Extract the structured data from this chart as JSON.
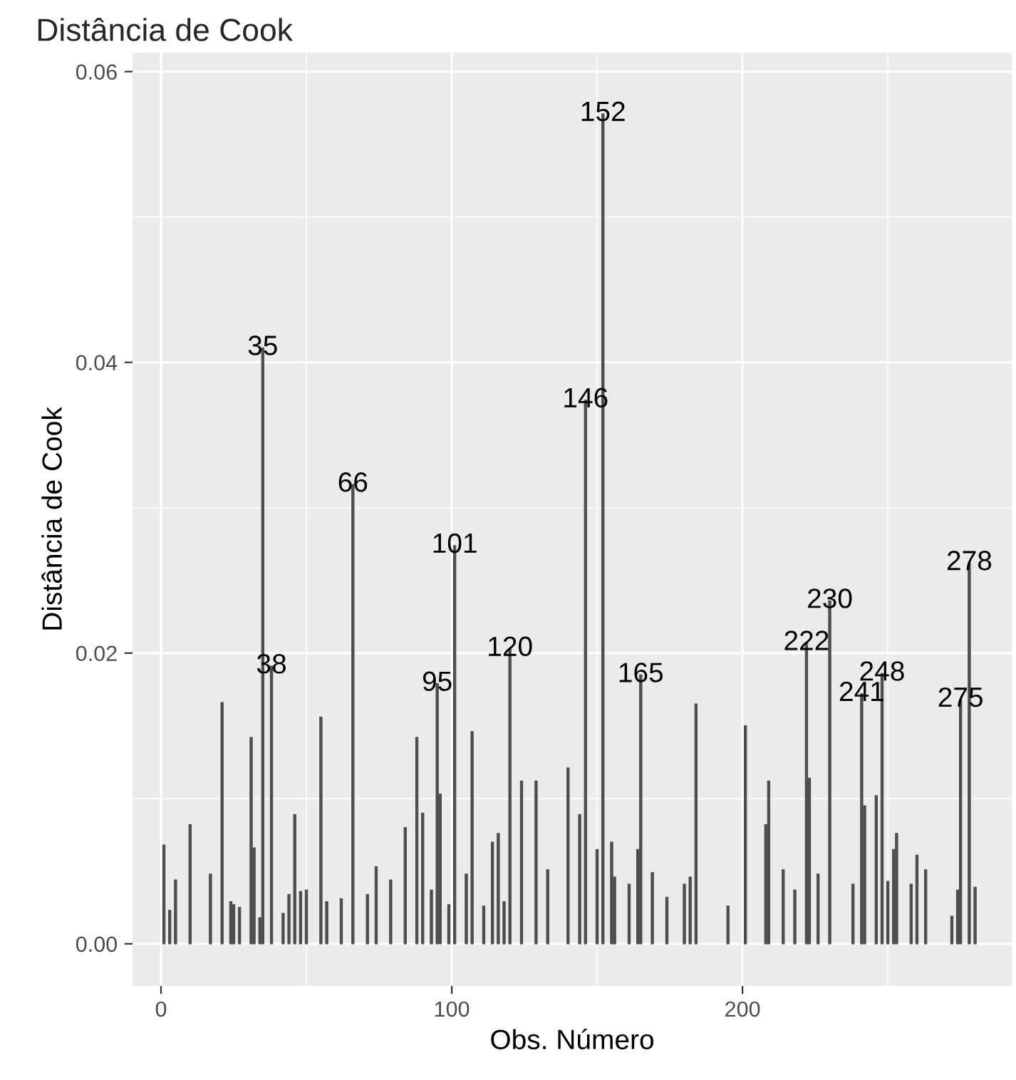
{
  "chart_data": {
    "type": "bar",
    "title": "Distância de Cook",
    "xlabel": "Obs. Número",
    "ylabel": "Distância de Cook",
    "x": [
      1,
      3,
      5,
      10,
      17,
      21,
      24,
      25,
      27,
      31,
      32,
      34,
      35,
      38,
      42,
      44,
      46,
      48,
      50,
      55,
      57,
      62,
      66,
      71,
      74,
      79,
      84,
      88,
      90,
      93,
      95,
      96,
      99,
      101,
      105,
      107,
      111,
      114,
      116,
      118,
      120,
      124,
      129,
      133,
      140,
      144,
      146,
      150,
      152,
      155,
      156,
      161,
      164,
      165,
      169,
      174,
      180,
      182,
      184,
      195,
      201,
      208,
      209,
      214,
      218,
      222,
      223,
      226,
      230,
      238,
      241,
      242,
      246,
      248,
      250,
      252,
      253,
      258,
      260,
      263,
      272,
      274,
      275,
      278,
      280
    ],
    "values": [
      0.0068,
      0.0023,
      0.0044,
      0.0082,
      0.0048,
      0.0166,
      0.0029,
      0.0027,
      0.0025,
      0.0142,
      0.0066,
      0.0018,
      0.041,
      0.0191,
      0.0021,
      0.0034,
      0.0089,
      0.0036,
      0.0037,
      0.0156,
      0.0029,
      0.0031,
      0.0316,
      0.0034,
      0.0053,
      0.0044,
      0.008,
      0.0142,
      0.009,
      0.0037,
      0.0179,
      0.0103,
      0.0027,
      0.0274,
      0.0048,
      0.0146,
      0.0026,
      0.007,
      0.0076,
      0.0029,
      0.0203,
      0.0112,
      0.0112,
      0.0051,
      0.0121,
      0.0089,
      0.0374,
      0.0065,
      0.0571,
      0.007,
      0.0046,
      0.0041,
      0.0065,
      0.0185,
      0.0049,
      0.0032,
      0.0041,
      0.0046,
      0.0165,
      0.0026,
      0.015,
      0.0082,
      0.0112,
      0.0051,
      0.0037,
      0.0207,
      0.0114,
      0.0048,
      0.0236,
      0.0041,
      0.0172,
      0.0095,
      0.0102,
      0.0186,
      0.0043,
      0.0065,
      0.0076,
      0.0041,
      0.0061,
      0.0051,
      0.0019,
      0.0037,
      0.0168,
      0.0262,
      0.0039
    ],
    "color": "#4d4d4d",
    "xlim": [
      -9.8,
      292.6
    ],
    "ylim": [
      -0.0029,
      0.0613
    ],
    "xticks": [
      0,
      100,
      200
    ],
    "yticks": [
      {
        "value": 0,
        "label": "0.00"
      },
      {
        "value": 0.02,
        "label": "0.02"
      },
      {
        "value": 0.04,
        "label": "0.04"
      },
      {
        "value": 0.06,
        "label": "0.06"
      }
    ],
    "grid": true,
    "annotations": [
      {
        "text": "35",
        "x": 35,
        "y": 0.041
      },
      {
        "text": "38",
        "x": 38,
        "y": 0.0191
      },
      {
        "text": "66",
        "x": 66,
        "y": 0.0316
      },
      {
        "text": "95",
        "x": 95,
        "y": 0.0179
      },
      {
        "text": "101",
        "x": 101,
        "y": 0.0274
      },
      {
        "text": "120",
        "x": 120,
        "y": 0.0203
      },
      {
        "text": "146",
        "x": 146,
        "y": 0.0374
      },
      {
        "text": "152",
        "x": 152,
        "y": 0.0571
      },
      {
        "text": "165",
        "x": 165,
        "y": 0.0185
      },
      {
        "text": "222",
        "x": 222,
        "y": 0.0207
      },
      {
        "text": "230",
        "x": 230,
        "y": 0.0236
      },
      {
        "text": "241",
        "x": 241,
        "y": 0.0172
      },
      {
        "text": "248",
        "x": 248,
        "y": 0.0186
      },
      {
        "text": "275",
        "x": 275,
        "y": 0.0168
      },
      {
        "text": "278",
        "x": 278,
        "y": 0.0262
      }
    ]
  }
}
